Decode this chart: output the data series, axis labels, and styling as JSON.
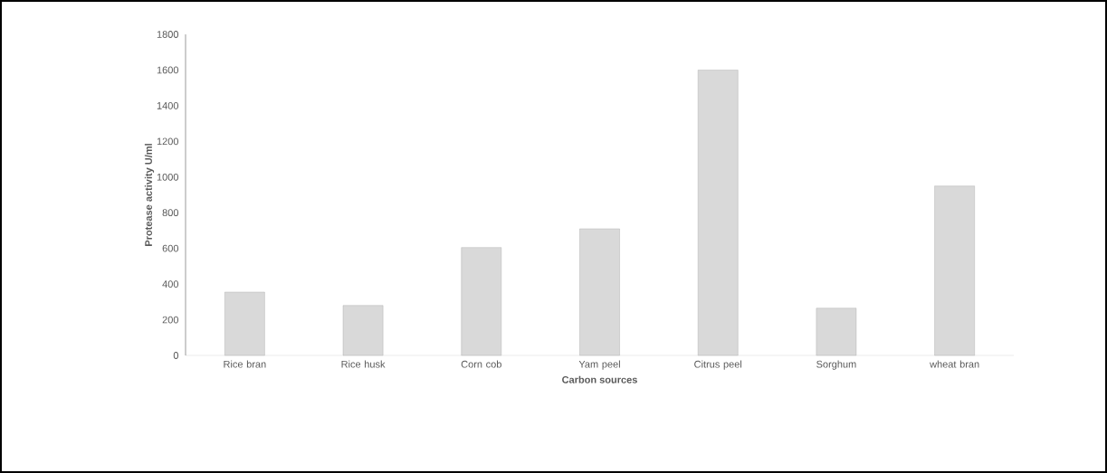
{
  "chart_data": {
    "type": "bar",
    "xlabel": "Carbon sources",
    "ylabel": "Protease activity U/ml",
    "categories": [
      "Rice bran",
      "Rice husk",
      "Corn cob",
      "Yam peel",
      "Citrus peel",
      "Sorghum",
      "wheat bran"
    ],
    "values": [
      355,
      280,
      605,
      710,
      1600,
      265,
      950
    ],
    "color": "#d9d9d9",
    "ylim": [
      0,
      1800
    ],
    "yticks": [
      0,
      200,
      400,
      600,
      800,
      1000,
      1200,
      1400,
      1600,
      1800
    ],
    "grid": false
  }
}
